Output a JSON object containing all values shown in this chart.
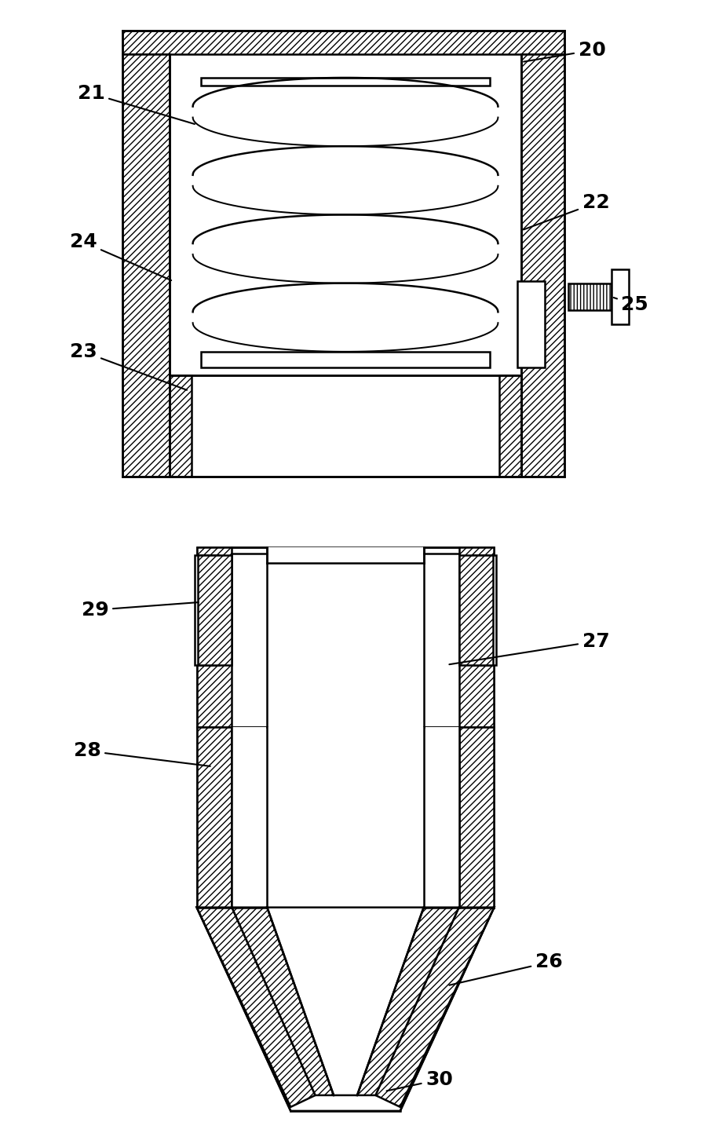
{
  "bg_color": "#ffffff",
  "line_color": "#000000",
  "lw": 1.8,
  "fig_width": 8.93,
  "fig_height": 14.57
}
